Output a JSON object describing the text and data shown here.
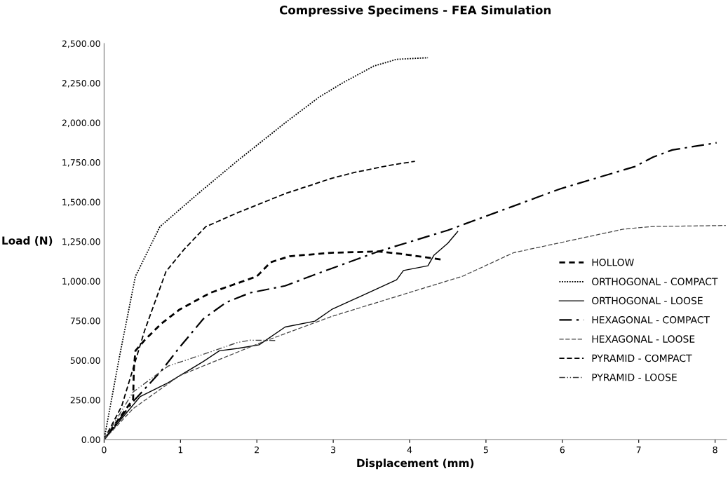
{
  "chart_data": {
    "type": "line",
    "title": "Compressive Specimens - FEA Simulation",
    "xlabel": "Displacement (mm)",
    "ylabel": "Load (N)",
    "xlim": [
      0,
      8.15
    ],
    "xticks": [
      0,
      1,
      2,
      3,
      4,
      5,
      6,
      7,
      8
    ],
    "ylim": [
      0,
      2500
    ],
    "yticks": [
      {
        "value": 0,
        "label": "0.00"
      },
      {
        "value": 250,
        "label": "250.00"
      },
      {
        "value": 500,
        "label": "500.00"
      },
      {
        "value": 750,
        "label": "750.00"
      },
      {
        "value": 1000,
        "label": "1,000.00"
      },
      {
        "value": 1250,
        "label": "1,250.00"
      },
      {
        "value": 1500,
        "label": "1,500.00"
      },
      {
        "value": 1750,
        "label": "1,750.00"
      },
      {
        "value": 2000,
        "label": "2,000.00"
      },
      {
        "value": 2250,
        "label": "2,250.00"
      },
      {
        "value": 2500,
        "label": "2,500.00"
      }
    ],
    "grid": false,
    "legend": "right",
    "marker": "none",
    "series": [
      {
        "name": "HOLLOW",
        "color": "#000000",
        "line_style": "dashed",
        "x": [
          0,
          0.38,
          0.39,
          0.41,
          0.53,
          0.75,
          0.99,
          1.39,
          2.0,
          2.18,
          2.43,
          2.98,
          3.59,
          3.89,
          4.43
        ],
        "values": [
          0,
          255,
          450,
          560,
          627,
          732,
          821,
          926,
          1030,
          1119,
          1157,
          1179,
          1187,
          1172,
          1135
        ]
      },
      {
        "name": "ORTHOGONAL - COMPACT",
        "color": "#000000",
        "line_style": "dotted",
        "x": [
          0,
          0.2,
          0.41,
          0.73,
          1.23,
          1.75,
          2.37,
          2.82,
          3.13,
          3.53,
          3.83,
          4.24
        ],
        "values": [
          0,
          520,
          1030,
          1343,
          1552,
          1761,
          1999,
          2163,
          2253,
          2357,
          2400,
          2410
        ]
      },
      {
        "name": "ORTHOGONAL - LOOSE",
        "color": "#000000",
        "line_style": "solid",
        "x": [
          0,
          0.47,
          0.84,
          1.3,
          1.51,
          1.75,
          2.03,
          2.37,
          2.76,
          2.98,
          3.59,
          3.83,
          3.92,
          4.24,
          4.32,
          4.5,
          4.63
        ],
        "values": [
          0,
          270,
          359,
          493,
          560,
          575,
          598,
          710,
          747,
          821,
          955,
          1008,
          1067,
          1097,
          1164,
          1239,
          1313
        ]
      },
      {
        "name": "HEXAGONAL - COMPACT",
        "color": "#000000",
        "line_style": "dashdot",
        "x": [
          0,
          0.38,
          0.75,
          0.99,
          1.3,
          1.6,
          1.91,
          2.37,
          2.82,
          3.59,
          4.5,
          5.97,
          6.95,
          7.19,
          7.44,
          8.02
        ],
        "values": [
          0,
          240,
          434,
          583,
          762,
          866,
          926,
          970,
          1052,
          1187,
          1321,
          1582,
          1723,
          1783,
          1828,
          1873
        ]
      },
      {
        "name": "HEXAGONAL - LOOSE",
        "color": "#444444",
        "line_style": "dashed",
        "x": [
          0,
          0.38,
          0.99,
          2.06,
          2.98,
          4.14,
          4.69,
          5.36,
          6.8,
          7.19,
          8.14
        ],
        "values": [
          0,
          195,
          404,
          613,
          777,
          949,
          1030,
          1179,
          1328,
          1345,
          1351
        ]
      },
      {
        "name": "PYRAMID - COMPACT",
        "color": "#000000",
        "line_style": "dashed",
        "x": [
          0,
          0.23,
          0.53,
          0.81,
          1.05,
          1.33,
          1.75,
          2.37,
          2.98,
          3.28,
          3.74,
          4.07
        ],
        "values": [
          0,
          210,
          687,
          1060,
          1202,
          1343,
          1432,
          1552,
          1649,
          1686,
          1731,
          1756
        ]
      },
      {
        "name": "PYRAMID - LOOSE",
        "color": "#444444",
        "line_style": "dashdotdot",
        "x": [
          0,
          0.38,
          0.84,
          1.3,
          1.75,
          1.91,
          2.24
        ],
        "values": [
          0,
          300,
          464,
          538,
          613,
          627,
          625
        ]
      }
    ]
  }
}
